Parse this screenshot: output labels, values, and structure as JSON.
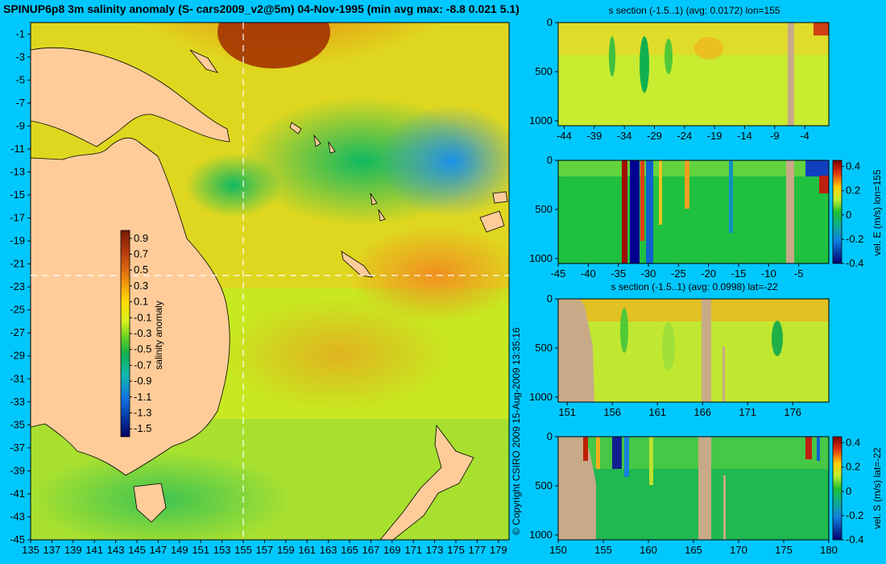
{
  "chart_data": [
    {
      "type": "heatmap",
      "id": "map",
      "title": "SPINUP6p8 3m salinity anomaly (S- cars2009_v2@5m) 04-Nov-1995 (min avg max: -8.8 0.021 5.1)",
      "xlim": [
        135,
        180
      ],
      "ylim": [
        -45,
        0
      ],
      "x_ticks": [
        135,
        137,
        139,
        141,
        143,
        145,
        147,
        149,
        151,
        153,
        155,
        157,
        159,
        161,
        163,
        165,
        167,
        169,
        171,
        173,
        175,
        177,
        179
      ],
      "y_ticks": [
        -1,
        -3,
        -5,
        -7,
        -9,
        -11,
        -13,
        -15,
        -17,
        -19,
        -21,
        -23,
        -25,
        -27,
        -29,
        -31,
        -33,
        -35,
        -37,
        -39,
        -41,
        -43,
        -45
      ],
      "section_lon": 155,
      "section_lat": -22,
      "colorbar": {
        "label": "salinity anomaly",
        "range": [
          -1.6,
          1.0
        ],
        "ticks": [
          "0.9",
          "0.7",
          "0.5",
          "0.3",
          "0.1",
          "-0.1",
          "-0.3",
          "-0.5",
          "-0.7",
          "-0.9",
          "-1.1",
          "-1.3",
          "-1.5"
        ]
      }
    },
    {
      "type": "heatmap",
      "id": "s_lon",
      "title": "s section (-1.5..1) (avg: 0.0172) lon=155",
      "xlim": [
        -45,
        0
      ],
      "ylim": [
        1050,
        0
      ],
      "x_ticks": [
        -44,
        -39,
        -34,
        -29,
        -24,
        -19,
        -14,
        -9,
        -4
      ],
      "y_ticks": [
        0,
        500,
        1000
      ]
    },
    {
      "type": "heatmap",
      "id": "v_lon",
      "title": "",
      "xlim": [
        -45,
        0
      ],
      "ylim": [
        1050,
        0
      ],
      "x_ticks": [
        -45,
        -40,
        -35,
        -30,
        -25,
        -20,
        -15,
        -10,
        -5
      ],
      "y_ticks": [
        0,
        500,
        1000
      ],
      "colorbar": {
        "label": "vel. E (m/s) lon=155",
        "range": [
          -0.4,
          0.45
        ],
        "ticks": [
          "0.4",
          "0.2",
          "0",
          "-0.2",
          "-0.4"
        ]
      }
    },
    {
      "type": "heatmap",
      "id": "s_lat",
      "title": "s section (-1.5..1) (avg: 0.0998) lat=-22",
      "xlim": [
        150,
        180
      ],
      "ylim": [
        1050,
        0
      ],
      "x_ticks": [
        151,
        156,
        161,
        166,
        171,
        176
      ],
      "y_ticks": [
        0,
        500,
        1000
      ]
    },
    {
      "type": "heatmap",
      "id": "v_lat",
      "title": "",
      "xlim": [
        150,
        180
      ],
      "ylim": [
        1050,
        0
      ],
      "x_ticks": [
        150,
        155,
        160,
        165,
        170,
        175,
        180
      ],
      "y_ticks": [
        0,
        500,
        1000
      ],
      "colorbar": {
        "label": "vel. S (m/s) lat=-22",
        "range": [
          -0.4,
          0.45
        ],
        "ticks": [
          "0.4",
          "0.2",
          "0",
          "-0.2",
          "-0.4"
        ]
      }
    }
  ],
  "copyright": "© Copyright CSIRO 2009   15-Aug-2009 13:35:16",
  "colors": {
    "background": "#00c8ff",
    "land": "#ffcc99",
    "section_land": "#c8aa88"
  }
}
